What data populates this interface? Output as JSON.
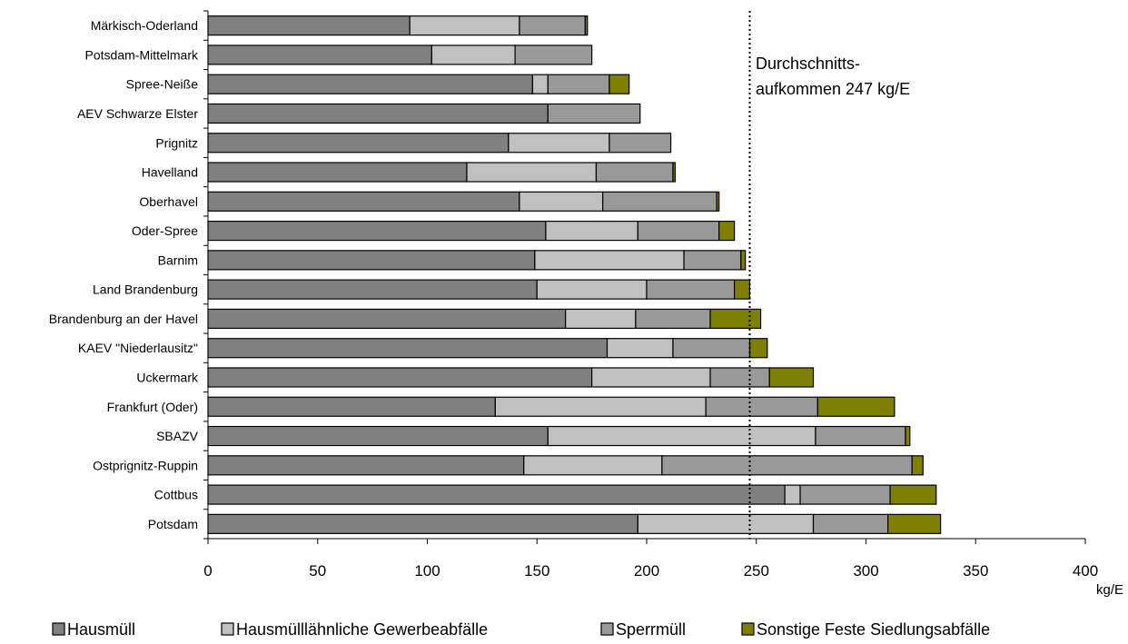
{
  "chart_data": {
    "type": "bar",
    "orientation": "horizontal",
    "stacked": true,
    "categories": [
      "Märkisch-Oderland",
      "Potsdam-Mittelmark",
      "Spree-Neiße",
      "AEV Schwarze Elster",
      "Prignitz",
      "Havelland",
      "Oberhavel",
      "Oder-Spree",
      "Barnim",
      "Land Brandenburg",
      "Brandenburg an der Havel",
      "KAEV \"Niederlausitz\"",
      "Uckermark",
      "Frankfurt (Oder)",
      "SBAZV",
      "Ostprignitz-Ruppin",
      "Cottbus",
      "Potsdam"
    ],
    "series": [
      {
        "name": "Hausmüll",
        "color": "#808080",
        "values": [
          92,
          102,
          148,
          155,
          137,
          118,
          142,
          154,
          149,
          150,
          163,
          182,
          175,
          131,
          155,
          144,
          263,
          196
        ]
      },
      {
        "name": "Hausmülllähnliche Gewerbeabfälle",
        "color": "#c0c0c0",
        "values": [
          50,
          38,
          7,
          0,
          46,
          59,
          38,
          42,
          68,
          50,
          32,
          30,
          54,
          96,
          122,
          63,
          7,
          80
        ]
      },
      {
        "name": "Sperrmüll",
        "color": "#999999",
        "values": [
          30,
          35,
          28,
          42,
          28,
          35,
          52,
          37,
          26,
          40,
          34,
          35,
          27,
          51,
          41,
          114,
          41,
          34
        ]
      },
      {
        "name": "Sonstige Feste Siedlungsabfälle",
        "color": "#808000",
        "values": [
          1,
          0,
          9,
          0,
          0,
          1,
          1,
          7,
          2,
          7,
          23,
          8,
          20,
          35,
          2,
          5,
          21,
          24
        ]
      }
    ],
    "xlim": [
      0,
      400
    ],
    "xticks": [
      0,
      50,
      100,
      150,
      200,
      250,
      300,
      350,
      400
    ],
    "xunit": "kg/E",
    "reference_line": {
      "value": 247,
      "label_line1": "Durchschnitts-",
      "label_line2": "aufkommen 247 kg/E"
    },
    "legend": {
      "position": "bottom"
    }
  }
}
